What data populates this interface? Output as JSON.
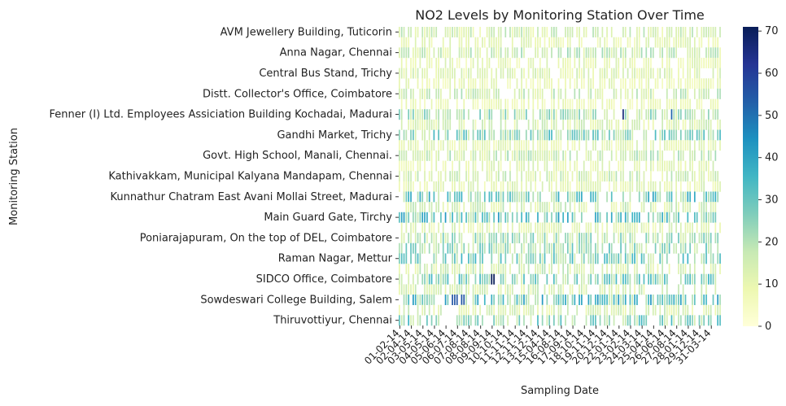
{
  "chart_data": {
    "type": "heatmap",
    "title": "NO2 Levels by Monitoring Station Over Time",
    "xlabel": "Sampling Date",
    "ylabel": "Monitoring Station",
    "y_tick_labels": [
      "AVM Jewellery Building, Tuticorin",
      "Anna Nagar, Chennai",
      "Central Bus Stand, Trichy",
      "Distt. Collector's Office, Coimbatore",
      "Fenner (I) Ltd. Employees Assiciation Building Kochadai, Madurai",
      "Gandhi Market, Trichy",
      "Govt. High School, Manali, Chennai.",
      "Kathivakkam, Municipal Kalyana Mandapam, Chennai",
      "Kunnathur Chatram East Avani Mollai Street, Madurai",
      "Main Guard Gate, Tirchy",
      "Poniarajapuram, On the top of DEL, Coimbatore",
      "Raman Nagar, Mettur",
      "SIDCO Office, Coimbatore",
      "Sowdeswari College Building, Salem",
      "Thiruvottiyur,  Chennai"
    ],
    "x_tick_labels": [
      "01-02-14",
      "02-04-14",
      "03-05-14",
      "04-05-14",
      "05-06-14",
      "06-07-14",
      "07-08-14",
      "08-08-14",
      "09-09-14",
      "10-10-14",
      "11-11-14",
      "12-11-14",
      "13-12-14",
      "15-04-14",
      "16-08-14",
      "17-09-14",
      "18-10-14",
      "19-11-14",
      "20-12-14",
      "22-01-14",
      "23-02-14",
      "24-03-14",
      "25-04-14",
      "26-06-14",
      "27-08-14",
      "28-01-14",
      "29-12-14",
      "31-03-14"
    ],
    "row_count": 29,
    "column_count": 140,
    "colorbar": {
      "min": 0,
      "max": 71,
      "ticks": [
        0,
        10,
        20,
        30,
        40,
        50,
        60,
        70
      ],
      "colormap": "YlGnBu"
    },
    "row_mean_levels": [
      14,
      10,
      16,
      10,
      12,
      9,
      15,
      8,
      20,
      13,
      24,
      10,
      16,
      11,
      14,
      11,
      28,
      14,
      30,
      11,
      20,
      22,
      25,
      14,
      25,
      13,
      30,
      13,
      25
    ],
    "highlights": [
      {
        "row": 8,
        "col_range": [
          95,
          97
        ],
        "value": 66
      },
      {
        "row": 8,
        "col_range": [
          117,
          118
        ],
        "value": 52
      },
      {
        "row": 24,
        "col_range": [
          40,
          41
        ],
        "value": 71
      },
      {
        "row": 26,
        "col_range": [
          22,
          28
        ],
        "value": 55
      }
    ],
    "grid": false,
    "legend": "colorbar-right"
  }
}
